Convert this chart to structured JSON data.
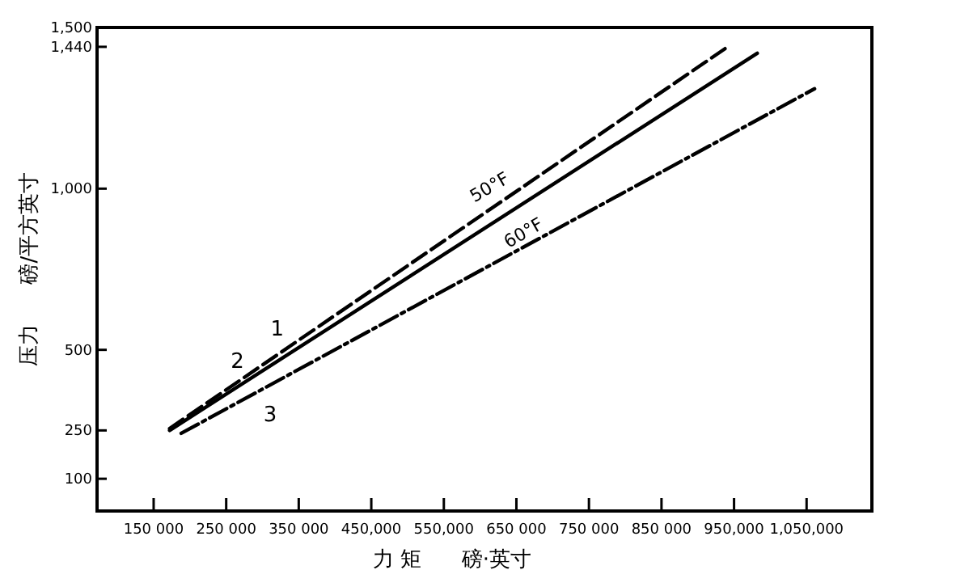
{
  "chart_data": {
    "type": "line",
    "xlabel": "力 矩      磅·英寸",
    "ylabel": "压力      磅/平方英寸",
    "xlim": [
      72000,
      1140000
    ],
    "ylim": [
      0,
      1500
    ],
    "xticks": [
      {
        "value": 150000,
        "label": "150 000"
      },
      {
        "value": 250000,
        "label": "250 000"
      },
      {
        "value": 350000,
        "label": "350 000"
      },
      {
        "value": 450000,
        "label": "450,000"
      },
      {
        "value": 550000,
        "label": "550,000"
      },
      {
        "value": 650000,
        "label": "650 000"
      },
      {
        "value": 750000,
        "label": "750 000"
      },
      {
        "value": 850000,
        "label": "850 000"
      },
      {
        "value": 950000,
        "label": "950,000"
      },
      {
        "value": 1050000,
        "label": "1,050,000"
      }
    ],
    "yticks": [
      100,
      250,
      500,
      {
        "value": 1000,
        "label": "1,000"
      },
      {
        "value": 1440,
        "label": "1,440"
      },
      {
        "value": 1500,
        "label": "1,500"
      }
    ],
    "grid": false,
    "legend": "left",
    "marker": "none",
    "series": [
      {
        "name": "1",
        "color": "#000000",
        "line_style": "dashed",
        "x": [
          172000,
          938000
        ],
        "values": [
          256,
          1435
        ]
      },
      {
        "name": "2",
        "color": "#000000",
        "line_style": "solid",
        "x": [
          172000,
          982000
        ],
        "values": [
          250,
          1420
        ]
      },
      {
        "name": "3",
        "color": "#000000",
        "line_style": "dashdot",
        "x": [
          188000,
          1061000
        ],
        "values": [
          241,
          1310
        ]
      }
    ],
    "annotations": [
      "50°F",
      "60°F"
    ]
  }
}
